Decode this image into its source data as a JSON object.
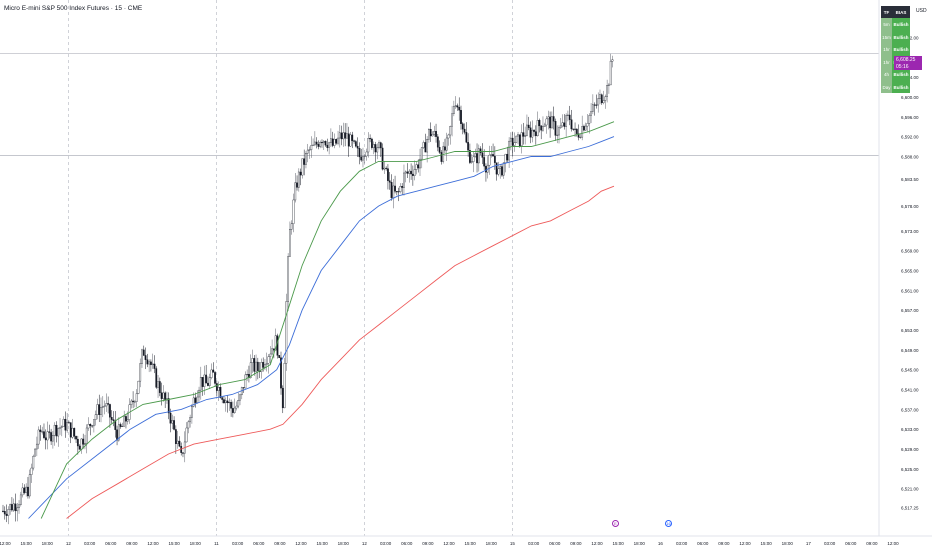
{
  "header": {
    "title": "Micro E-mini S&P 500 Index Futures · 15 · CME",
    "currency": "USD"
  },
  "bias_table": {
    "headers": [
      "TF",
      "BIAS"
    ],
    "rows": [
      {
        "tf": "5m",
        "bias": "Bullish"
      },
      {
        "tf": "15m",
        "bias": "Bullish"
      },
      {
        "tf": "1hr",
        "bias": "Bullish"
      },
      {
        "tf": "1hr",
        "bias": "Bullish"
      },
      {
        "tf": "4h",
        "bias": "Bullish"
      },
      {
        "tf": "Day",
        "bias": "Bullish"
      }
    ]
  },
  "price_tag": {
    "price": "6,608.25",
    "countdown": "05:16",
    "color": "#9c27b0"
  },
  "events": [
    {
      "label": "E",
      "color": "#9c27b0",
      "at": "15:00"
    },
    {
      "label": "16",
      "color": "#2962ff",
      "at": "16"
    }
  ],
  "chart_data": {
    "type": "candlestick",
    "interval": "15 minutes",
    "ylim": [
      6515.5,
      6613.5
    ],
    "y_ticks": [
      {
        "value": 6612.0,
        "label": "6,612.00"
      },
      {
        "value": 6608.0,
        "label": "6,608.00"
      },
      {
        "value": 6604.0,
        "label": "6,604.00"
      },
      {
        "value": 6600.0,
        "label": "6,600.00"
      },
      {
        "value": 6596.0,
        "label": "6,596.00"
      },
      {
        "value": 6592.0,
        "label": "6,592.00"
      },
      {
        "value": 6588.0,
        "label": "6,588.00"
      },
      {
        "value": 6583.5,
        "label": "6,583.50"
      },
      {
        "value": 6578.0,
        "label": "6,578.00"
      },
      {
        "value": 6573.0,
        "label": "6,573.00"
      },
      {
        "value": 6569.0,
        "label": "6,569.00"
      },
      {
        "value": 6565.0,
        "label": "6,565.00"
      },
      {
        "value": 6561.0,
        "label": "6,561.00"
      },
      {
        "value": 6557.0,
        "label": "6,557.00"
      },
      {
        "value": 6553.0,
        "label": "6,553.00"
      },
      {
        "value": 6549.0,
        "label": "6,549.00"
      },
      {
        "value": 6545.0,
        "label": "6,545.00"
      },
      {
        "value": 6541.0,
        "label": "6,541.00"
      },
      {
        "value": 6537.0,
        "label": "6,537.00"
      },
      {
        "value": 6533.0,
        "label": "6,533.00"
      },
      {
        "value": 6529.0,
        "label": "6,529.00"
      },
      {
        "value": 6525.0,
        "label": "6,525.00"
      },
      {
        "value": 6521.0,
        "label": "6,521.00"
      },
      {
        "value": 6517.25,
        "label": "6,517.25"
      }
    ],
    "x_ticks": [
      "12:00",
      "15:00",
      "18:00",
      "12",
      "03:00",
      "06:00",
      "09:00",
      "12:00",
      "15:00",
      "18:00",
      "11",
      "03:00",
      "06:00",
      "09:00",
      "12:00",
      "15:00",
      "18:00",
      "12",
      "03:00",
      "06:00",
      "09:00",
      "12:00",
      "15:00",
      "18:00",
      "15",
      "03:00",
      "06:00",
      "09:00",
      "12:00",
      "15:00",
      "18:00",
      "16",
      "03:00",
      "06:00",
      "09:00",
      "12:00",
      "15:00",
      "18:00",
      "17",
      "03:00",
      "06:00",
      "09:00",
      "12:00"
    ],
    "day_separators": [
      "12",
      "11",
      "12",
      "15"
    ],
    "horizontal_levels": [
      6608.8,
      6588.2
    ],
    "close_path": [
      [
        0,
        6516.5
      ],
      [
        2,
        6518
      ],
      [
        4,
        6521
      ],
      [
        5,
        6529
      ],
      [
        6,
        6533
      ],
      [
        7,
        6531
      ],
      [
        8,
        6533
      ],
      [
        10,
        6534
      ],
      [
        12,
        6530
      ],
      [
        13,
        6532
      ],
      [
        14,
        6535
      ],
      [
        15,
        6537
      ],
      [
        16,
        6538
      ],
      [
        17,
        6535
      ],
      [
        18,
        6532
      ],
      [
        19,
        6534
      ],
      [
        20,
        6537
      ],
      [
        21,
        6541
      ],
      [
        22,
        6549
      ],
      [
        23,
        6547
      ],
      [
        24,
        6543
      ],
      [
        25,
        6540
      ],
      [
        26,
        6537
      ],
      [
        27,
        6532
      ],
      [
        28,
        6527
      ],
      [
        29,
        6534
      ],
      [
        30,
        6539
      ],
      [
        31,
        6543
      ],
      [
        32,
        6542
      ],
      [
        33,
        6544
      ],
      [
        34,
        6541
      ],
      [
        35,
        6539
      ],
      [
        36,
        6537
      ],
      [
        37,
        6538
      ],
      [
        38,
        6543
      ],
      [
        39,
        6546
      ],
      [
        40,
        6545
      ],
      [
        41,
        6547
      ],
      [
        42,
        6549
      ],
      [
        43,
        6551
      ],
      [
        44,
        6538
      ],
      [
        44.5,
        6558
      ],
      [
        45,
        6572
      ],
      [
        46,
        6582
      ],
      [
        47,
        6586
      ],
      [
        48,
        6589
      ],
      [
        49,
        6590
      ],
      [
        50,
        6592
      ],
      [
        51,
        6591
      ],
      [
        52,
        6590
      ],
      [
        53,
        6592
      ],
      [
        54,
        6592
      ],
      [
        55,
        6590
      ],
      [
        56,
        6588
      ],
      [
        57,
        6590
      ],
      [
        58,
        6591
      ],
      [
        59,
        6590
      ],
      [
        60,
        6585
      ],
      [
        61,
        6581
      ],
      [
        62,
        6580
      ],
      [
        63,
        6584
      ],
      [
        64,
        6585
      ],
      [
        65,
        6586
      ],
      [
        66,
        6589
      ],
      [
        67,
        6593
      ],
      [
        68,
        6592
      ],
      [
        69,
        6588
      ],
      [
        70,
        6591
      ],
      [
        71,
        6600
      ],
      [
        72,
        6596
      ],
      [
        73,
        6589
      ],
      [
        74,
        6587
      ],
      [
        75,
        6589
      ],
      [
        76,
        6586
      ],
      [
        77,
        6588
      ],
      [
        78,
        6584
      ],
      [
        79,
        6588
      ],
      [
        80,
        6591
      ],
      [
        81,
        6591
      ],
      [
        82,
        6593
      ],
      [
        83,
        6593
      ],
      [
        84,
        6594
      ],
      [
        85,
        6595
      ],
      [
        86,
        6595
      ],
      [
        87,
        6593
      ],
      [
        88,
        6594
      ],
      [
        89,
        6596
      ],
      [
        90,
        6592
      ],
      [
        91,
        6594
      ],
      [
        92,
        6596
      ],
      [
        93,
        6598
      ],
      [
        94,
        6600
      ],
      [
        95,
        6602
      ],
      [
        95.5,
        6606
      ],
      [
        96,
        6609
      ]
    ],
    "series": [
      {
        "name": "",
        "color": "#3d6ed8",
        "points": [
          [
            4,
            6515
          ],
          [
            10,
            6523
          ],
          [
            16,
            6529
          ],
          [
            20,
            6533
          ],
          [
            24,
            6536
          ],
          [
            28,
            6537
          ],
          [
            32,
            6539
          ],
          [
            36,
            6540
          ],
          [
            40,
            6542
          ],
          [
            43,
            6545
          ],
          [
            45,
            6550
          ],
          [
            47,
            6557
          ],
          [
            50,
            6565
          ],
          [
            53,
            6570
          ],
          [
            56,
            6575
          ],
          [
            59,
            6578
          ],
          [
            62,
            6580
          ],
          [
            65,
            6581
          ],
          [
            68,
            6582
          ],
          [
            71,
            6583
          ],
          [
            74,
            6584
          ],
          [
            77,
            6586
          ],
          [
            80,
            6587
          ],
          [
            83,
            6588
          ],
          [
            86,
            6588
          ],
          [
            89,
            6589
          ],
          [
            92,
            6590
          ],
          [
            94,
            6591
          ],
          [
            96,
            6592
          ]
        ]
      },
      {
        "name": "",
        "color": "#4c9a4c",
        "points": [
          [
            6,
            6515
          ],
          [
            10,
            6526
          ],
          [
            14,
            6531
          ],
          [
            18,
            6535
          ],
          [
            22,
            6538
          ],
          [
            26,
            6539
          ],
          [
            30,
            6540
          ],
          [
            34,
            6542
          ],
          [
            38,
            6543
          ],
          [
            42,
            6546
          ],
          [
            45,
            6558
          ],
          [
            47,
            6566
          ],
          [
            50,
            6575
          ],
          [
            53,
            6581
          ],
          [
            56,
            6585
          ],
          [
            59,
            6587
          ],
          [
            62,
            6587
          ],
          [
            65,
            6587
          ],
          [
            68,
            6588
          ],
          [
            71,
            6589
          ],
          [
            74,
            6589
          ],
          [
            77,
            6589
          ],
          [
            80,
            6590
          ],
          [
            83,
            6590
          ],
          [
            86,
            6591
          ],
          [
            89,
            6592
          ],
          [
            92,
            6593
          ],
          [
            94,
            6594
          ],
          [
            96,
            6595
          ]
        ]
      },
      {
        "name": "",
        "color": "#ee5a5a",
        "points": [
          [
            10,
            6515
          ],
          [
            14,
            6519
          ],
          [
            18,
            6522
          ],
          [
            22,
            6525
          ],
          [
            26,
            6528
          ],
          [
            30,
            6530
          ],
          [
            34,
            6531
          ],
          [
            38,
            6532
          ],
          [
            42,
            6533
          ],
          [
            44,
            6534
          ],
          [
            47,
            6538
          ],
          [
            50,
            6543
          ],
          [
            53,
            6547
          ],
          [
            56,
            6551
          ],
          [
            59,
            6554
          ],
          [
            62,
            6557
          ],
          [
            65,
            6560
          ],
          [
            68,
            6563
          ],
          [
            71,
            6566
          ],
          [
            74,
            6568
          ],
          [
            77,
            6570
          ],
          [
            80,
            6572
          ],
          [
            83,
            6574
          ],
          [
            86,
            6575
          ],
          [
            89,
            6577
          ],
          [
            92,
            6579
          ],
          [
            94,
            6581
          ],
          [
            96,
            6582
          ]
        ]
      }
    ]
  }
}
